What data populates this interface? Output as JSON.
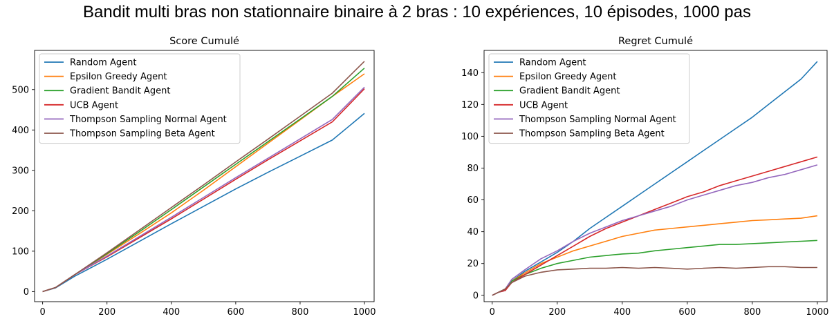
{
  "figure": {
    "suptitle": "Bandit multi bras non stationnaire binaire à 2 bras : 10 expériences, 10 épisodes, 1000 pas"
  },
  "colors": {
    "Random Agent": "#1f77b4",
    "Epsilon Greedy Agent": "#ff7f0e",
    "Gradient Bandit Agent": "#2ca02c",
    "UCB Agent": "#d62728",
    "Thompson Sampling Normal Agent": "#9467bd",
    "Thompson Sampling Beta Agent": "#8c564b"
  },
  "chart_data": [
    {
      "type": "line",
      "title": "Score Cumulé",
      "xlabel": "",
      "ylabel": "",
      "xlim": [
        -25,
        1030
      ],
      "ylim": [
        -25,
        597
      ],
      "xticks": [
        0,
        200,
        400,
        600,
        800,
        1000
      ],
      "yticks": [
        0,
        100,
        200,
        300,
        400,
        500
      ],
      "legend": "top-left",
      "grid": false,
      "series": [
        {
          "name": "Random Agent",
          "x": [
            0,
            40,
            100,
            200,
            300,
            400,
            500,
            600,
            700,
            800,
            900,
            1000
          ],
          "y": [
            0,
            9,
            38,
            80,
            124,
            168,
            211,
            254,
            295,
            335,
            375,
            441
          ]
        },
        {
          "name": "Epsilon Greedy Agent",
          "x": [
            0,
            40,
            100,
            200,
            300,
            400,
            500,
            600,
            700,
            800,
            900,
            1000
          ],
          "y": [
            0,
            10,
            42,
            92,
            143,
            195,
            251,
            309,
            367,
            425,
            483,
            539
          ]
        },
        {
          "name": "Gradient Bandit Agent",
          "x": [
            0,
            40,
            100,
            200,
            300,
            400,
            500,
            600,
            700,
            800,
            900,
            1000
          ],
          "y": [
            0,
            10,
            42,
            94,
            148,
            203,
            259,
            315,
            371,
            427,
            483,
            553
          ]
        },
        {
          "name": "UCB Agent",
          "x": [
            0,
            40,
            100,
            200,
            300,
            400,
            500,
            600,
            700,
            800,
            900,
            1000
          ],
          "y": [
            0,
            10,
            42,
            86,
            133,
            180,
            229,
            278,
            326,
            373,
            420,
            502
          ]
        },
        {
          "name": "Thompson Sampling Normal Agent",
          "x": [
            0,
            40,
            100,
            200,
            300,
            400,
            500,
            600,
            700,
            800,
            900,
            1000
          ],
          "y": [
            0,
            10,
            42,
            88,
            136,
            184,
            233,
            282,
            330,
            378,
            426,
            506
          ]
        },
        {
          "name": "Thompson Sampling Beta Agent",
          "x": [
            0,
            40,
            100,
            200,
            300,
            400,
            500,
            600,
            700,
            800,
            900,
            1000
          ],
          "y": [
            0,
            10,
            42,
            96,
            152,
            208,
            264,
            321,
            377,
            434,
            491,
            570
          ]
        }
      ]
    },
    {
      "type": "line",
      "title": "Regret Cumulé",
      "xlabel": "",
      "ylabel": "",
      "xlim": [
        -25,
        1030
      ],
      "ylim": [
        -4,
        154
      ],
      "xticks": [
        0,
        200,
        400,
        600,
        800,
        1000
      ],
      "yticks": [
        0,
        20,
        40,
        60,
        80,
        100,
        120,
        140
      ],
      "legend": "top-left",
      "grid": false,
      "series": [
        {
          "name": "Random Agent",
          "x": [
            0,
            20,
            40,
            60,
            100,
            150,
            200,
            250,
            300,
            350,
            400,
            450,
            500,
            550,
            600,
            650,
            700,
            750,
            800,
            850,
            900,
            950,
            1000
          ],
          "y": [
            0,
            2,
            3,
            9,
            15,
            21,
            27,
            34,
            42,
            49,
            56,
            63,
            70,
            77,
            84,
            91,
            98,
            105,
            112,
            120,
            128,
            136,
            147
          ]
        },
        {
          "name": "Epsilon Greedy Agent",
          "x": [
            0,
            20,
            40,
            60,
            100,
            150,
            200,
            250,
            300,
            350,
            400,
            450,
            500,
            550,
            600,
            650,
            700,
            750,
            800,
            850,
            900,
            950,
            1000
          ],
          "y": [
            0,
            2,
            4,
            9,
            14,
            20,
            24,
            28,
            31,
            34,
            37,
            39,
            41,
            42,
            43,
            44,
            45,
            46,
            47,
            47.5,
            48,
            48.5,
            50
          ]
        },
        {
          "name": "Gradient Bandit Agent",
          "x": [
            0,
            20,
            40,
            60,
            100,
            150,
            200,
            250,
            300,
            350,
            400,
            450,
            500,
            550,
            600,
            650,
            700,
            750,
            800,
            850,
            900,
            950,
            1000
          ],
          "y": [
            0,
            2,
            4,
            9,
            13,
            17,
            20,
            22,
            24,
            25,
            26,
            26.5,
            28,
            29,
            30,
            31,
            32,
            32,
            32.5,
            33,
            33.5,
            34,
            34.5
          ]
        },
        {
          "name": "UCB Agent",
          "x": [
            0,
            20,
            40,
            60,
            100,
            150,
            200,
            250,
            300,
            350,
            400,
            450,
            500,
            550,
            600,
            650,
            700,
            750,
            800,
            850,
            900,
            950,
            1000
          ],
          "y": [
            0,
            2,
            3,
            8,
            13,
            19,
            25,
            31,
            37,
            42,
            46,
            50,
            54,
            58,
            62,
            65,
            69,
            72,
            75,
            78,
            81,
            84,
            87
          ]
        },
        {
          "name": "Thompson Sampling Normal Agent",
          "x": [
            0,
            20,
            40,
            60,
            100,
            150,
            200,
            250,
            300,
            350,
            400,
            450,
            500,
            550,
            600,
            650,
            700,
            750,
            800,
            850,
            900,
            950,
            1000
          ],
          "y": [
            0,
            2,
            4,
            10,
            16,
            23,
            28,
            34,
            39,
            43,
            47,
            50,
            53,
            56,
            60,
            63,
            66,
            69,
            71,
            74,
            76,
            79,
            82
          ]
        },
        {
          "name": "Thompson Sampling Beta Agent",
          "x": [
            0,
            20,
            40,
            60,
            100,
            150,
            200,
            250,
            300,
            350,
            400,
            450,
            500,
            550,
            600,
            650,
            700,
            750,
            800,
            850,
            900,
            950,
            1000
          ],
          "y": [
            0,
            2,
            4,
            8,
            12,
            14.5,
            16,
            16.5,
            17,
            17,
            17.5,
            17,
            17.5,
            17,
            16.5,
            17,
            17.5,
            17,
            17.5,
            18,
            18,
            17.5,
            17.5
          ]
        }
      ]
    }
  ]
}
